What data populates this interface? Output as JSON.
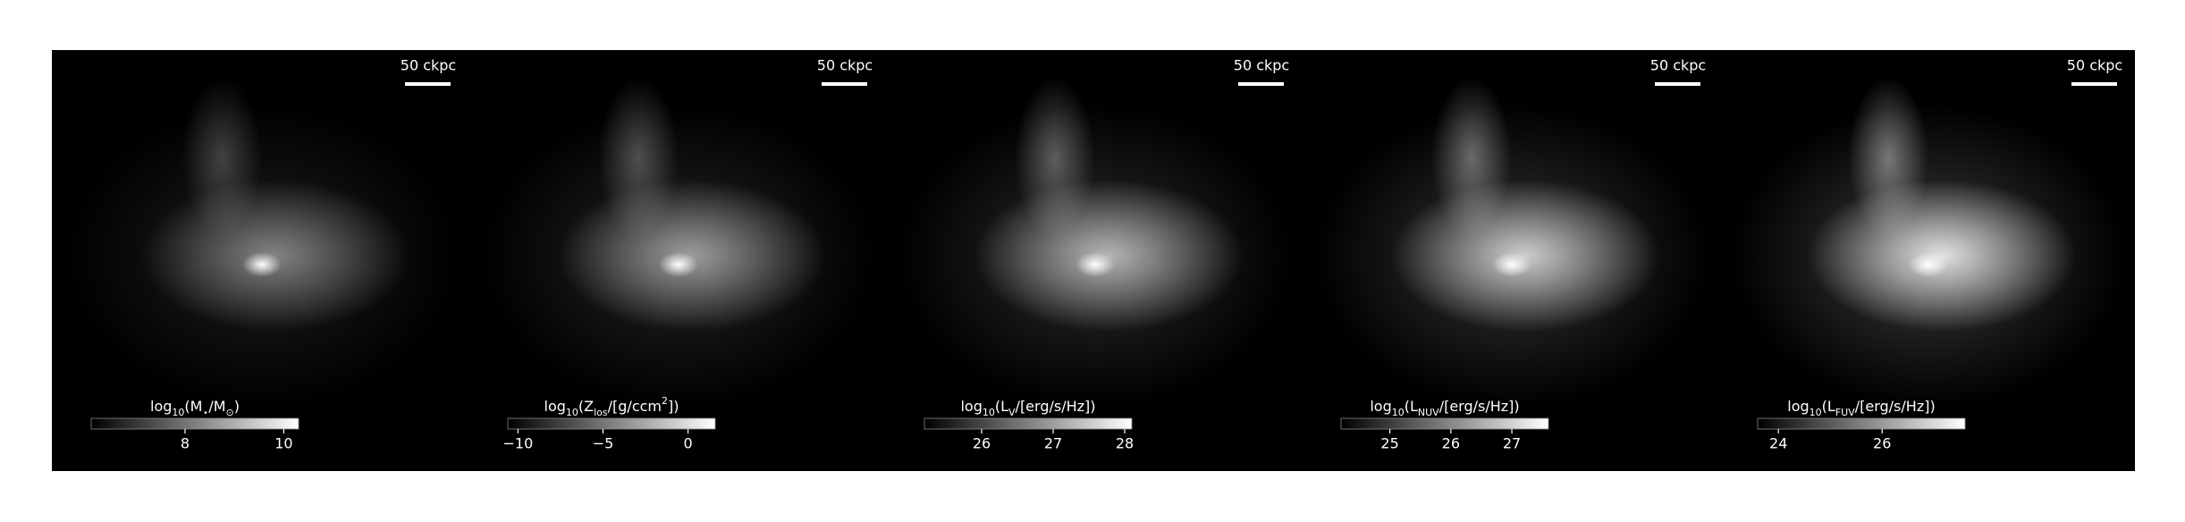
{
  "chart_data": [
    {
      "type": "image",
      "scale_bar": "50 ckpc",
      "colorbar": {
        "label": "log_{10}(M_{⋆}/M_{⊙})",
        "clim": [
          6.1,
          10.3
        ],
        "ticks": [
          8,
          10
        ]
      }
    },
    {
      "type": "image",
      "scale_bar": "50 ckpc",
      "colorbar": {
        "label": "log_{10}(Z_{los}/[g/ccm^{2}])",
        "clim": [
          -10.6,
          1.6
        ],
        "ticks": [
          {
            "value": -10,
            "label": "−10"
          },
          {
            "value": -5,
            "label": "−5"
          },
          0
        ]
      }
    },
    {
      "type": "image",
      "scale_bar": "50 ckpc",
      "colorbar": {
        "label": "log_{10}(L_{V}/[erg/s/Hz])",
        "clim": [
          25.2,
          28.1
        ],
        "ticks": [
          26,
          27,
          28
        ]
      }
    },
    {
      "type": "image",
      "scale_bar": "50 ckpc",
      "colorbar": {
        "label": "log_{10}(L_{NUV}/[erg/s/Hz])",
        "clim": [
          24.2,
          27.6
        ],
        "ticks": [
          25,
          26,
          27
        ]
      }
    },
    {
      "type": "image",
      "scale_bar": "50 ckpc",
      "colorbar": {
        "label": "log_{10}(L_{FUV}/[erg/s/Hz])",
        "clim": [
          23.6,
          27.6
        ],
        "ticks": [
          24,
          26
        ]
      }
    }
  ]
}
